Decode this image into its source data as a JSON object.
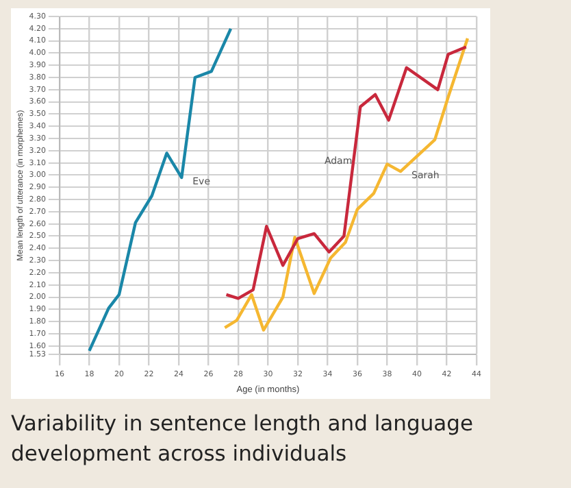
{
  "chart_data": {
    "type": "line",
    "title": "Variability in sentence length and language development across individuals",
    "xlabel": "Age (in months)",
    "ylabel": "Mean length of utterance (in morphemes)",
    "xlim": [
      16,
      44
    ],
    "xticks": [
      16,
      18,
      20,
      22,
      24,
      26,
      28,
      30,
      32,
      34,
      36,
      38,
      40,
      42,
      44
    ],
    "ylim": [
      1.53,
      4.3
    ],
    "yticks": [
      1.53,
      {
        "value": 1.6,
        "label": "1.60"
      },
      {
        "value": 1.7,
        "label": "1.70"
      },
      {
        "value": 1.8,
        "label": "1.80"
      },
      {
        "value": 1.9,
        "label": "1.90"
      },
      {
        "value": 2.0,
        "label": "2.00"
      },
      {
        "value": 2.1,
        "label": "2.10"
      },
      {
        "value": 2.2,
        "label": "2.20"
      },
      {
        "value": 2.3,
        "label": "2.30"
      },
      {
        "value": 2.4,
        "label": "2.40"
      },
      {
        "value": 2.5,
        "label": "2.50"
      },
      {
        "value": 2.6,
        "label": "2.60"
      },
      {
        "value": 2.7,
        "label": "2.70"
      },
      {
        "value": 2.8,
        "label": "2.80"
      },
      {
        "value": 2.9,
        "label": "2.90"
      },
      {
        "value": 3.0,
        "label": "3.00"
      },
      {
        "value": 3.1,
        "label": "3.10"
      },
      {
        "value": 3.2,
        "label": "3.20"
      },
      {
        "value": 3.3,
        "label": "3.30"
      },
      {
        "value": 3.4,
        "label": "3.40"
      },
      {
        "value": 3.5,
        "label": "3.50"
      },
      {
        "value": 3.6,
        "label": "3.60"
      },
      {
        "value": 3.7,
        "label": "3.70"
      },
      {
        "value": 3.8,
        "label": "3.80"
      },
      {
        "value": 3.9,
        "label": "3.90"
      },
      {
        "value": 4.0,
        "label": "4.00"
      },
      {
        "value": 4.1,
        "label": "4.10"
      },
      {
        "value": 4.2,
        "label": "4.20"
      },
      {
        "value": 4.3,
        "label": "4.30"
      }
    ],
    "grid": true,
    "legend": false,
    "marker": "none",
    "line_style": "solid",
    "series": [
      {
        "name": "Eve",
        "color": "#1a87a8",
        "x": [
          18,
          19.3,
          20,
          21.1,
          22.2,
          23.2,
          24.2,
          25.1,
          26.2,
          27.5
        ],
        "values": [
          1.56,
          1.91,
          2.02,
          2.61,
          2.83,
          3.18,
          2.98,
          3.8,
          3.85,
          4.2
        ]
      },
      {
        "name": "Adam",
        "color": "#c8283c",
        "x": [
          27.2,
          28,
          29,
          29.9,
          31,
          32,
          33.1,
          34.1,
          35.1,
          36.2,
          37.2,
          38.1,
          39.3,
          41.4,
          42.1,
          43.3
        ],
        "values": [
          2.02,
          1.99,
          2.06,
          2.58,
          2.26,
          2.48,
          2.52,
          2.37,
          2.5,
          3.56,
          3.66,
          3.45,
          3.88,
          3.7,
          3.99,
          4.05
        ]
      },
      {
        "name": "Sarah",
        "color": "#f5b731",
        "x": [
          27.1,
          27.9,
          28.9,
          29.7,
          31,
          31.8,
          33.1,
          34.2,
          35.2,
          36,
          37.1,
          38,
          38.9,
          41.2,
          42.1,
          43.4
        ],
        "values": [
          1.75,
          1.81,
          2.02,
          1.73,
          2,
          2.49,
          2.03,
          2.32,
          2.45,
          2.72,
          2.85,
          3.09,
          3.03,
          3.29,
          3.64,
          4.12
        ]
      }
    ]
  }
}
